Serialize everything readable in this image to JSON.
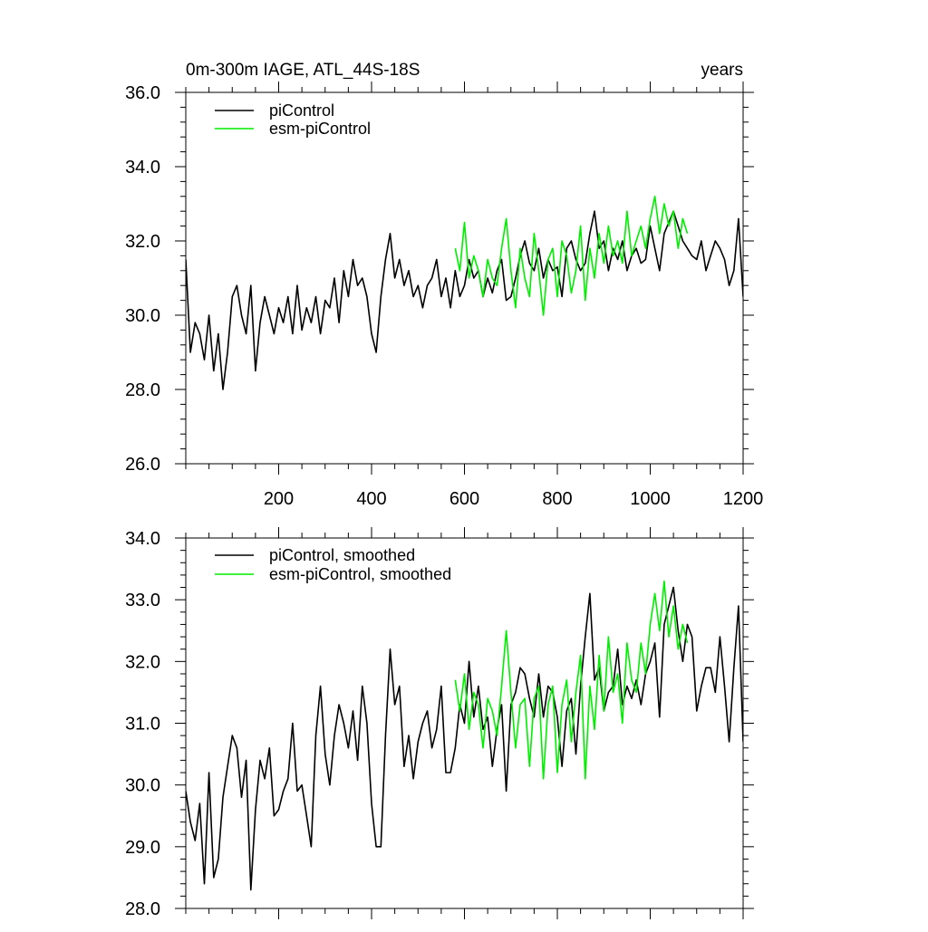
{
  "header": {
    "left_title": "0m-300m IAGE, ATL_44S-18S",
    "right_title": "years"
  },
  "colors": {
    "picontrol": "#000000",
    "esm_picontrol": "#00ee00",
    "axis": "#000000"
  },
  "chart_data": [
    {
      "type": "line",
      "title": "0m-300m IAGE, ATL_44S-18S",
      "units_label": "years",
      "xlabel": "",
      "ylabel": "",
      "xlim": [
        0,
        1200
      ],
      "ylim": [
        26.0,
        36.0
      ],
      "x_ticks": [
        200,
        400,
        600,
        800,
        1000,
        1200
      ],
      "x_tick_labels": [
        "200",
        "400",
        "600",
        "800",
        "1000",
        "1200"
      ],
      "y_ticks": [
        26.0,
        28.0,
        30.0,
        32.0,
        34.0,
        36.0
      ],
      "y_tick_labels": [
        "26.0",
        "28.0",
        "30.0",
        "32.0",
        "34.0",
        "36.0"
      ],
      "grid": false,
      "legend_position": "top-left",
      "series": [
        {
          "name": "piControl",
          "color": "#000000",
          "x": [
            0,
            10,
            20,
            30,
            40,
            50,
            60,
            70,
            80,
            90,
            100,
            110,
            120,
            130,
            140,
            150,
            160,
            170,
            180,
            190,
            200,
            210,
            220,
            230,
            240,
            250,
            260,
            270,
            280,
            290,
            300,
            310,
            320,
            330,
            340,
            350,
            360,
            370,
            380,
            390,
            400,
            410,
            420,
            430,
            440,
            450,
            460,
            470,
            480,
            490,
            500,
            510,
            520,
            530,
            540,
            550,
            560,
            570,
            580,
            590,
            600,
            610,
            620,
            630,
            640,
            650,
            660,
            670,
            680,
            690,
            700,
            710,
            720,
            730,
            740,
            750,
            760,
            770,
            780,
            790,
            800,
            810,
            820,
            830,
            840,
            850,
            860,
            870,
            880,
            890,
            900,
            910,
            920,
            930,
            940,
            950,
            960,
            970,
            980,
            990,
            1000,
            1010,
            1020,
            1030,
            1040,
            1050,
            1060,
            1070,
            1080,
            1090,
            1100,
            1110,
            1120,
            1130,
            1140,
            1150,
            1160,
            1170,
            1180,
            1190,
            1200
          ],
          "y": [
            31.5,
            29.0,
            29.8,
            29.5,
            28.8,
            30.0,
            28.5,
            29.5,
            28.0,
            29.0,
            30.5,
            30.8,
            30.0,
            29.5,
            30.8,
            28.5,
            29.8,
            30.5,
            30.0,
            29.5,
            30.2,
            29.8,
            30.5,
            29.5,
            30.8,
            29.6,
            30.2,
            29.8,
            30.5,
            29.5,
            30.4,
            30.2,
            31.0,
            29.8,
            31.2,
            30.5,
            31.5,
            30.8,
            31.0,
            30.5,
            29.5,
            29.0,
            30.5,
            31.5,
            32.2,
            31.0,
            31.5,
            30.8,
            31.2,
            30.5,
            30.8,
            30.2,
            30.8,
            31.0,
            31.5,
            30.5,
            31.0,
            30.2,
            31.2,
            30.5,
            30.8,
            31.5,
            31.0,
            31.2,
            30.5,
            31.0,
            30.6,
            31.2,
            31.5,
            30.4,
            30.5,
            31.0,
            31.6,
            32.0,
            31.4,
            31.2,
            31.8,
            31.0,
            31.5,
            31.2,
            31.3,
            30.5,
            31.8,
            32.0,
            31.5,
            31.2,
            31.4,
            32.2,
            32.8,
            31.8,
            32.0,
            31.2,
            31.8,
            31.5,
            32.0,
            31.2,
            31.6,
            31.8,
            31.4,
            31.5,
            32.4,
            31.8,
            31.2,
            32.2,
            32.5,
            32.8,
            32.4,
            32.0,
            31.8,
            31.6,
            31.5,
            32.0,
            31.2,
            31.6,
            32.0,
            31.8,
            31.5,
            30.8,
            31.2,
            32.6,
            30.5
          ]
        },
        {
          "name": "esm-piControl",
          "color": "#00ee00",
          "x": [
            580,
            590,
            600,
            610,
            620,
            630,
            640,
            650,
            660,
            670,
            680,
            690,
            700,
            710,
            720,
            730,
            740,
            750,
            760,
            770,
            780,
            790,
            800,
            810,
            820,
            830,
            840,
            850,
            860,
            870,
            880,
            890,
            900,
            910,
            920,
            930,
            940,
            950,
            960,
            970,
            980,
            990,
            1000,
            1010,
            1020,
            1030,
            1040,
            1050,
            1060,
            1070,
            1080
          ],
          "y": [
            31.8,
            31.2,
            32.5,
            31.0,
            31.6,
            31.2,
            30.5,
            31.5,
            31.0,
            30.8,
            31.8,
            32.6,
            31.2,
            30.2,
            31.8,
            31.0,
            30.5,
            32.2,
            31.2,
            30.0,
            31.5,
            31.8,
            30.5,
            32.0,
            31.6,
            30.6,
            31.2,
            32.4,
            30.4,
            31.8,
            31.0,
            32.2,
            31.4,
            32.4,
            31.6,
            32.0,
            31.4,
            32.8,
            31.6,
            32.0,
            32.4,
            31.8,
            32.6,
            33.2,
            32.2,
            33.0,
            32.4,
            32.8,
            31.8,
            32.6,
            32.2
          ]
        }
      ]
    },
    {
      "type": "line",
      "title": "",
      "xlabel": "",
      "ylabel": "",
      "xlim": [
        0,
        1200
      ],
      "ylim": [
        28.0,
        34.0
      ],
      "x_ticks": [
        200,
        400,
        600,
        800,
        1000,
        1200
      ],
      "y_ticks": [
        28.0,
        29.0,
        30.0,
        31.0,
        32.0,
        33.0,
        34.0
      ],
      "y_tick_labels": [
        "28.0",
        "29.0",
        "30.0",
        "31.0",
        "32.0",
        "33.0",
        "34.0"
      ],
      "grid": false,
      "legend_position": "top-left",
      "series": [
        {
          "name": "piControl, smoothed",
          "color": "#000000",
          "x": [
            0,
            10,
            20,
            30,
            40,
            50,
            60,
            70,
            80,
            90,
            100,
            110,
            120,
            130,
            140,
            150,
            160,
            170,
            180,
            190,
            200,
            210,
            220,
            230,
            240,
            250,
            260,
            270,
            280,
            290,
            300,
            310,
            320,
            330,
            340,
            350,
            360,
            370,
            380,
            390,
            400,
            410,
            420,
            430,
            440,
            450,
            460,
            470,
            480,
            490,
            500,
            510,
            520,
            530,
            540,
            550,
            560,
            570,
            580,
            590,
            600,
            610,
            620,
            630,
            640,
            650,
            660,
            670,
            680,
            690,
            700,
            710,
            720,
            730,
            740,
            750,
            760,
            770,
            780,
            790,
            800,
            810,
            820,
            830,
            840,
            850,
            860,
            870,
            880,
            890,
            900,
            910,
            920,
            930,
            940,
            950,
            960,
            970,
            980,
            990,
            1000,
            1010,
            1020,
            1030,
            1040,
            1050,
            1060,
            1070,
            1080,
            1090,
            1100,
            1110,
            1120,
            1130,
            1140,
            1150,
            1160,
            1170,
            1180,
            1190,
            1200
          ],
          "y": [
            29.9,
            29.4,
            29.1,
            29.7,
            28.4,
            30.2,
            28.5,
            28.8,
            29.8,
            30.3,
            30.8,
            30.6,
            29.8,
            30.4,
            28.3,
            29.6,
            30.4,
            30.1,
            30.6,
            29.5,
            29.6,
            29.9,
            30.1,
            31.0,
            29.9,
            30.0,
            29.5,
            29.0,
            30.8,
            31.6,
            30.5,
            30.0,
            30.8,
            31.3,
            31.0,
            30.6,
            31.2,
            30.4,
            31.6,
            31.0,
            29.7,
            29.0,
            29.0,
            30.8,
            32.2,
            31.3,
            31.6,
            30.3,
            30.8,
            30.1,
            30.7,
            31.0,
            31.2,
            30.6,
            30.9,
            31.6,
            30.2,
            30.2,
            30.6,
            31.3,
            31.0,
            32.0,
            31.1,
            31.6,
            30.9,
            31.1,
            30.3,
            30.9,
            31.3,
            29.9,
            31.3,
            31.5,
            31.9,
            31.8,
            31.4,
            31.1,
            31.8,
            31.1,
            31.6,
            31.5,
            31.1,
            30.3,
            31.2,
            31.4,
            30.5,
            31.6,
            32.4,
            33.1,
            31.7,
            31.9,
            31.2,
            31.5,
            31.6,
            32.2,
            31.3,
            31.6,
            31.4,
            31.7,
            31.3,
            31.8,
            32.0,
            32.3,
            31.1,
            32.6,
            32.9,
            33.2,
            32.5,
            32.0,
            32.6,
            32.4,
            31.2,
            31.6,
            31.9,
            31.9,
            31.5,
            32.4,
            31.6,
            30.7,
            31.9,
            32.9,
            30.7
          ]
        },
        {
          "name": "esm-piControl, smoothed",
          "color": "#00ee00",
          "x": [
            580,
            590,
            600,
            610,
            620,
            630,
            640,
            650,
            660,
            670,
            680,
            690,
            700,
            710,
            720,
            730,
            740,
            750,
            760,
            770,
            780,
            790,
            800,
            810,
            820,
            830,
            840,
            850,
            860,
            870,
            880,
            890,
            900,
            910,
            920,
            930,
            940,
            950,
            960,
            970,
            980,
            990,
            1000,
            1010,
            1020,
            1030,
            1040,
            1050,
            1060,
            1070,
            1080
          ],
          "y": [
            31.7,
            31.2,
            31.8,
            30.9,
            31.5,
            31.3,
            30.6,
            31.4,
            31.2,
            30.8,
            31.6,
            32.5,
            31.5,
            30.6,
            31.3,
            31.4,
            30.3,
            31.4,
            31.6,
            30.1,
            31.3,
            31.6,
            30.2,
            31.3,
            31.7,
            30.7,
            31.5,
            32.1,
            30.1,
            31.6,
            30.9,
            32.1,
            31.2,
            32.4,
            31.5,
            31.8,
            31.0,
            32.3,
            31.7,
            31.5,
            32.3,
            31.8,
            32.6,
            33.1,
            32.5,
            33.3,
            32.4,
            32.9,
            32.2,
            32.6,
            32.3
          ]
        }
      ]
    }
  ]
}
